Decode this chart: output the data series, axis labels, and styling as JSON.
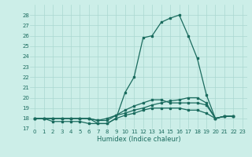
{
  "xlabel": "Humidex (Indice chaleur)",
  "background_color": "#cceee8",
  "line_color": "#1a6b5e",
  "grid_color": "#aad8d0",
  "xlim": [
    -0.5,
    23.5
  ],
  "ylim": [
    17,
    29
  ],
  "yticks": [
    17,
    18,
    19,
    20,
    21,
    22,
    23,
    24,
    25,
    26,
    27,
    28
  ],
  "xticks": [
    0,
    1,
    2,
    3,
    4,
    5,
    6,
    7,
    8,
    9,
    10,
    11,
    12,
    13,
    14,
    15,
    16,
    17,
    18,
    19,
    20,
    21,
    22,
    23
  ],
  "series": [
    [
      18,
      18,
      17.7,
      17.7,
      17.7,
      17.7,
      17.5,
      17.5,
      17.5,
      18,
      20.5,
      22,
      25.8,
      26,
      27.3,
      27.7,
      28,
      26,
      23.8,
      20.3,
      18,
      18.2,
      18.2
    ],
    [
      18,
      18,
      18,
      18,
      18,
      18,
      18,
      17.8,
      18,
      18.3,
      18.5,
      18.8,
      19,
      19.3,
      19.5,
      19.7,
      19.8,
      20,
      20,
      19.5,
      18,
      18.2,
      18.2
    ],
    [
      18,
      18,
      18,
      18,
      18,
      18,
      18,
      17.8,
      17.8,
      18.3,
      18.8,
      19.2,
      19.5,
      19.8,
      19.8,
      19.5,
      19.5,
      19.5,
      19.5,
      19.3,
      18,
      18.2,
      18.2
    ],
    [
      18,
      18,
      18,
      18,
      18,
      18,
      18,
      17.5,
      17.5,
      18,
      18.3,
      18.5,
      18.8,
      19,
      19,
      19,
      19,
      18.8,
      18.8,
      18.5,
      18,
      18.2,
      18.2
    ]
  ]
}
